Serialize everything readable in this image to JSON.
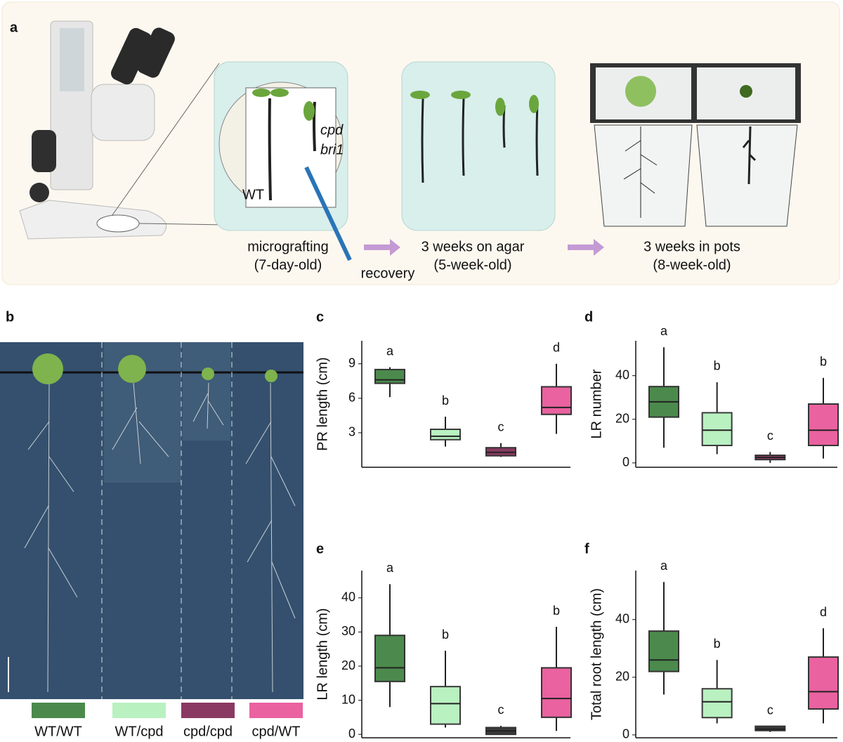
{
  "panels": {
    "a": {
      "letter": "a",
      "wt": "WT",
      "cpd": "cpd",
      "bri1": "bri1",
      "step1": "micrografting",
      "step1_age": "(7-day-old)",
      "recovery": "recovery",
      "step2": "3 weeks on agar",
      "step2_age": "(5-week-old)",
      "step3": "3 weeks in pots",
      "step3_age": "(8-week-old)"
    },
    "b": {
      "letter": "b",
      "legend": [
        {
          "name": "WT/WT",
          "color": "#4b8a4c"
        },
        {
          "name": "WT/cpd",
          "color": "#b9f1c1"
        },
        {
          "name": "cpd/cpd",
          "color": "#8a3a62"
        },
        {
          "name": "cpd/WT",
          "color": "#ea62a0"
        }
      ]
    }
  },
  "chart_data": [
    {
      "type": "box",
      "letter": "c",
      "ylabel": "PR length (cm)",
      "ylim": [
        0,
        11
      ],
      "yticks": [
        3,
        6,
        9
      ],
      "groups": [
        "a",
        "b",
        "c",
        "d"
      ],
      "colors": [
        "#4b8a4c",
        "#b9f1c1",
        "#8a3a62",
        "#ea62a0"
      ],
      "boxes": [
        {
          "min": 6.1,
          "q1": 7.3,
          "median": 7.6,
          "q3": 8.5,
          "max": 8.7
        },
        {
          "min": 1.8,
          "q1": 2.4,
          "median": 2.7,
          "q3": 3.3,
          "max": 4.4
        },
        {
          "min": 0.9,
          "q1": 1.0,
          "median": 1.3,
          "q3": 1.7,
          "max": 2.1
        },
        {
          "min": 2.9,
          "q1": 4.6,
          "median": 5.2,
          "q3": 7.0,
          "max": 9.0
        }
      ]
    },
    {
      "type": "box",
      "letter": "d",
      "ylabel": "LR number",
      "ylim": [
        -2,
        56
      ],
      "yticks": [
        0,
        20,
        40
      ],
      "groups": [
        "a",
        "b",
        "c",
        "b"
      ],
      "colors": [
        "#4b8a4c",
        "#b9f1c1",
        "#8a3a62",
        "#ea62a0"
      ],
      "boxes": [
        {
          "min": 7,
          "q1": 21,
          "median": 28,
          "q3": 35,
          "max": 53
        },
        {
          "min": 4,
          "q1": 8,
          "median": 15,
          "q3": 23,
          "max": 37
        },
        {
          "min": 0,
          "q1": 1.5,
          "median": 2.5,
          "q3": 3.5,
          "max": 5
        },
        {
          "min": 2,
          "q1": 8,
          "median": 15,
          "q3": 27,
          "max": 39
        }
      ]
    },
    {
      "type": "box",
      "letter": "e",
      "ylabel": "LR length (cm)",
      "ylim": [
        -1,
        48
      ],
      "yticks": [
        0,
        10,
        20,
        30,
        40
      ],
      "groups": [
        "a",
        "b",
        "c",
        "b"
      ],
      "colors": [
        "#4b8a4c",
        "#b9f1c1",
        "#3a3a3a",
        "#ea62a0"
      ],
      "boxes": [
        {
          "min": 8,
          "q1": 15.5,
          "median": 19.5,
          "q3": 29,
          "max": 44
        },
        {
          "min": 2,
          "q1": 3,
          "median": 9,
          "q3": 14,
          "max": 24.5
        },
        {
          "min": 0,
          "q1": 0,
          "median": 1,
          "q3": 2,
          "max": 2.5
        },
        {
          "min": 1,
          "q1": 5,
          "median": 10.5,
          "q3": 19.5,
          "max": 31.5
        }
      ]
    },
    {
      "type": "box",
      "letter": "f",
      "ylabel": "Total root length (cm)",
      "ylim": [
        -1,
        57
      ],
      "yticks": [
        0,
        20,
        40
      ],
      "groups": [
        "a",
        "b",
        "c",
        "d"
      ],
      "colors": [
        "#4b8a4c",
        "#b9f1c1",
        "#3a3a3a",
        "#ea62a0"
      ],
      "boxes": [
        {
          "min": 14,
          "q1": 22,
          "median": 26,
          "q3": 36,
          "max": 53
        },
        {
          "min": 4,
          "q1": 6,
          "median": 11.5,
          "q3": 16,
          "max": 26
        },
        {
          "min": 1,
          "q1": 1.5,
          "median": 2,
          "q3": 3,
          "max": 3
        },
        {
          "min": 4,
          "q1": 9,
          "median": 15,
          "q3": 27,
          "max": 37
        }
      ]
    }
  ]
}
